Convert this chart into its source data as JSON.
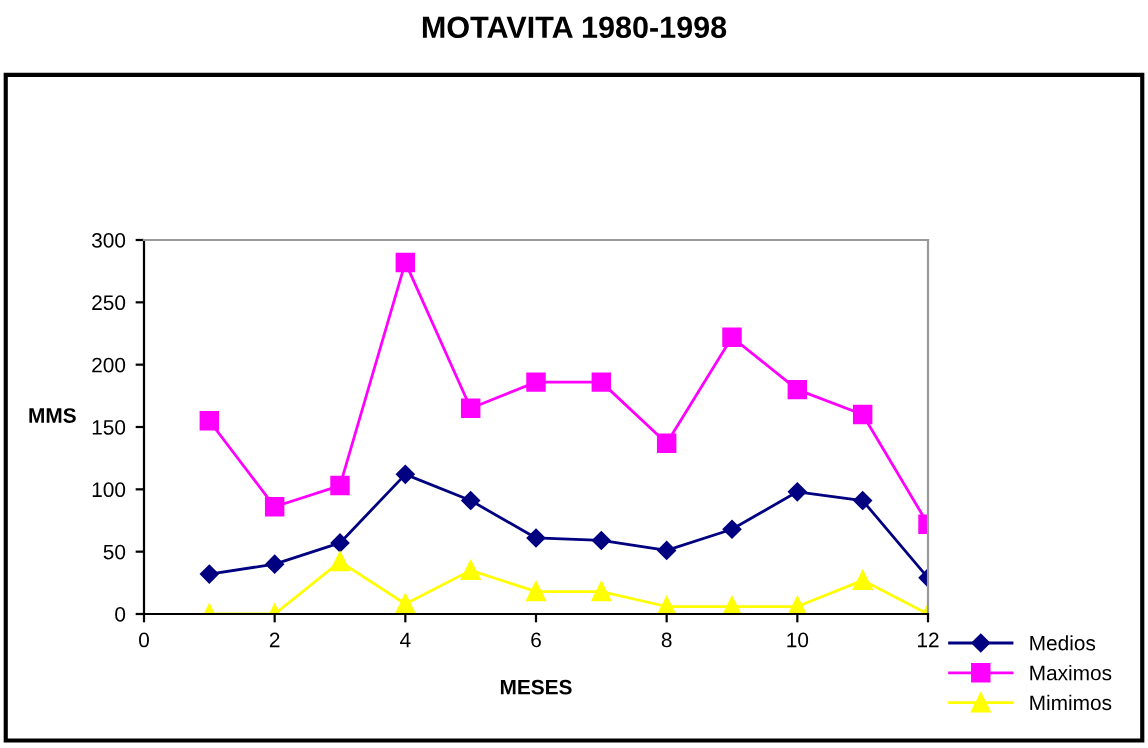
{
  "chart_data": {
    "type": "line",
    "title": "MOTAVITA 1980-1998",
    "xlabel": "MESES",
    "ylabel": "MMS",
    "x": [
      1,
      2,
      3,
      4,
      5,
      6,
      7,
      8,
      9,
      10,
      11,
      12
    ],
    "series": [
      {
        "name": "Medios",
        "color": "#000080",
        "marker": "diamond",
        "values": [
          32,
          40,
          57,
          112,
          91,
          61,
          59,
          51,
          68,
          98,
          91,
          29
        ]
      },
      {
        "name": "Maximos",
        "color": "#ff00ff",
        "marker": "square",
        "values": [
          155,
          86,
          103,
          282,
          165,
          186,
          186,
          137,
          222,
          180,
          160,
          72
        ]
      },
      {
        "name": "Mimimos",
        "color": "#ffff00",
        "marker": "triangle",
        "values": [
          0,
          0,
          42,
          8,
          35,
          18,
          18,
          6,
          6,
          6,
          27,
          0
        ]
      }
    ],
    "xlim": [
      0,
      12
    ],
    "xticks": [
      0,
      2,
      4,
      6,
      8,
      10,
      12
    ],
    "ylim": [
      0,
      300
    ],
    "yticks": [
      0,
      50,
      100,
      150,
      200,
      250,
      300
    ],
    "grid": false,
    "legend": "bottom right"
  }
}
